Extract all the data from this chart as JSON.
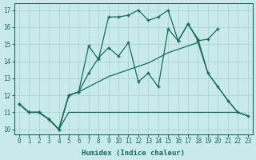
{
  "xlabel": "Humidex (Indice chaleur)",
  "bg_color": "#c8eaea",
  "grid_color": "#a8d0d0",
  "line_color": "#1a6b5a",
  "xlim": [
    -0.5,
    23.5
  ],
  "ylim": [
    9.7,
    17.4
  ],
  "yticks": [
    10,
    11,
    12,
    13,
    14,
    15,
    16,
    17
  ],
  "xticks": [
    0,
    1,
    2,
    3,
    4,
    5,
    6,
    7,
    8,
    9,
    10,
    11,
    12,
    13,
    14,
    15,
    16,
    17,
    18,
    19,
    20,
    21,
    22,
    23
  ],
  "series1_x": [
    0,
    1,
    2,
    3,
    4,
    5,
    6,
    7,
    8,
    9,
    10,
    11,
    12,
    13,
    14,
    15,
    16,
    17,
    18,
    19,
    20,
    21,
    22,
    23
  ],
  "series1_y": [
    11.5,
    11.0,
    11.0,
    10.6,
    10.0,
    11.0,
    11.0,
    11.0,
    11.0,
    11.0,
    11.0,
    11.0,
    11.0,
    11.0,
    11.0,
    11.0,
    11.0,
    11.0,
    11.0,
    11.0,
    11.0,
    11.0,
    11.0,
    10.8
  ],
  "series2_x": [
    0,
    1,
    2,
    3,
    4,
    5,
    6,
    7,
    8,
    9,
    10,
    11,
    12,
    13,
    14,
    15,
    16,
    17,
    18,
    19,
    20,
    21,
    22,
    23
  ],
  "series2_y": [
    11.5,
    11.0,
    11.0,
    10.6,
    10.0,
    12.0,
    12.2,
    12.5,
    12.8,
    13.1,
    13.3,
    13.5,
    13.7,
    13.9,
    14.2,
    14.5,
    14.7,
    14.9,
    15.1,
    13.3,
    12.5,
    11.7,
    11.0,
    10.8
  ],
  "series3_x": [
    0,
    1,
    2,
    3,
    4,
    5,
    6,
    7,
    8,
    9,
    10,
    11,
    12,
    13,
    14,
    15,
    16,
    17,
    18,
    19,
    20
  ],
  "series3_y": [
    11.5,
    11.0,
    11.0,
    10.6,
    10.0,
    12.0,
    12.2,
    14.9,
    14.1,
    16.6,
    16.6,
    16.7,
    17.0,
    16.4,
    16.6,
    17.0,
    15.2,
    16.2,
    15.2,
    15.3,
    15.9
  ],
  "series4_x": [
    0,
    1,
    2,
    3,
    4,
    5,
    6,
    7,
    8,
    9,
    10,
    11,
    12,
    13,
    14,
    15,
    16,
    17,
    18,
    19,
    20,
    21,
    22,
    23
  ],
  "series4_y": [
    11.5,
    11.0,
    11.0,
    10.6,
    10.0,
    12.0,
    12.2,
    13.3,
    14.2,
    14.8,
    14.3,
    15.1,
    12.8,
    13.3,
    12.5,
    15.9,
    15.2,
    16.2,
    15.3,
    13.3,
    12.5,
    11.7,
    11.0,
    10.8
  ]
}
